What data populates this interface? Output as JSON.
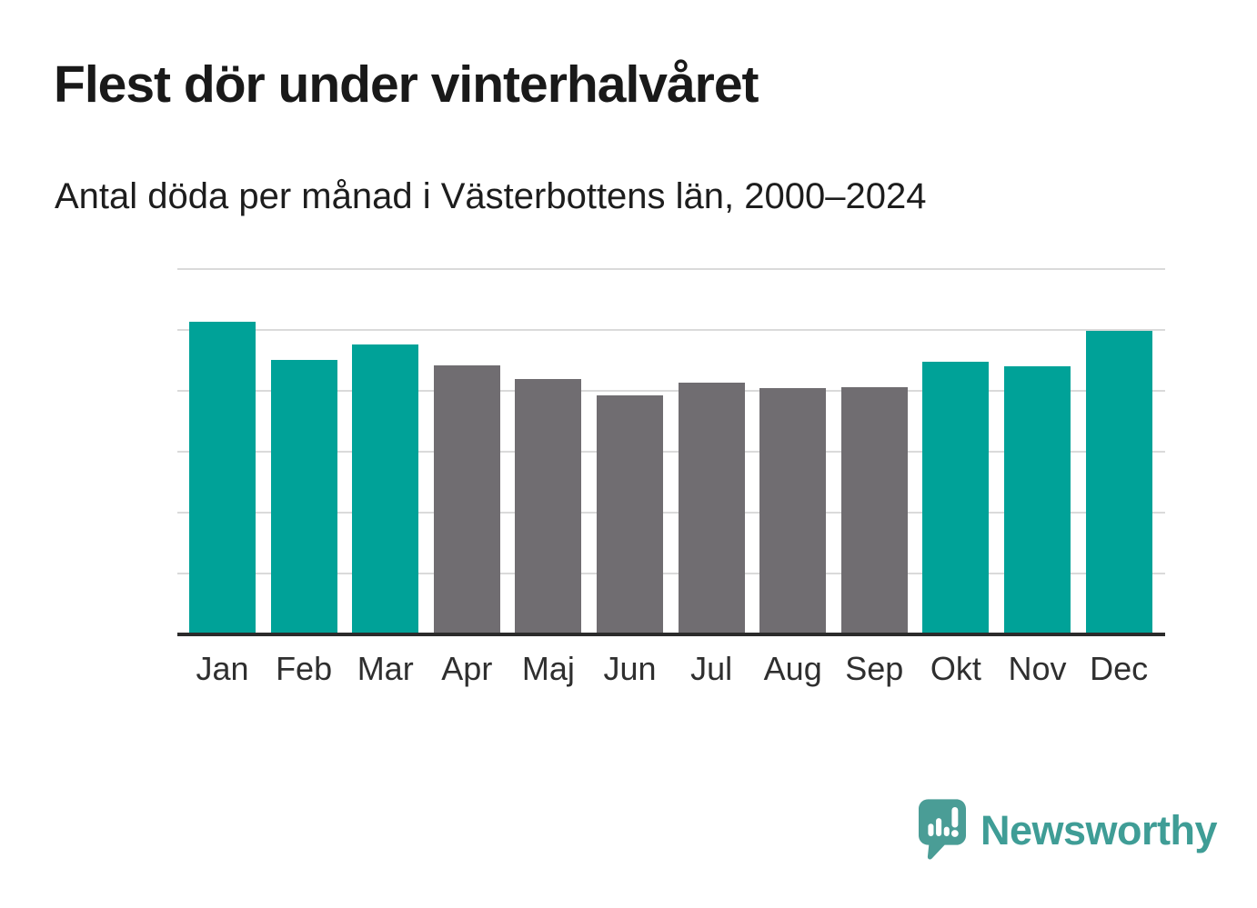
{
  "header": {
    "title": "Flest dör under vinterhalvåret",
    "subtitle": "Antal döda per månad i Västerbottens län, 2000–2024"
  },
  "footer": {
    "brand": "Newsworthy",
    "brand_color": "#3f9d96",
    "icon": "newsworthy-chart-bubble-icon",
    "icon_color": "#4a9d96"
  },
  "colors": {
    "background": "#ffffff",
    "title_text": "#191919",
    "subtitle_text": "#1d1d1d",
    "axis_label_text": "#2f2f2f",
    "gridline": "#dadada",
    "axis_line": "#2b2b2b"
  },
  "chart_data": {
    "type": "bar",
    "title": "Flest dör under vinterhalvåret",
    "subtitle": "Antal döda per månad i Västerbottens län, 2000–2024",
    "categories": [
      "Jan",
      "Feb",
      "Mar",
      "Apr",
      "Maj",
      "Jun",
      "Jul",
      "Aug",
      "Sep",
      "Okt",
      "Nov",
      "Dec"
    ],
    "values": [
      257,
      225,
      238,
      221,
      210,
      196,
      207,
      202,
      203,
      224,
      220,
      249
    ],
    "highlighted": [
      true,
      true,
      true,
      false,
      false,
      false,
      false,
      false,
      false,
      true,
      true,
      true
    ],
    "highlight_color": "#00a298",
    "muted_color": "#706d71",
    "ylim": [
      0,
      300
    ],
    "yticks": [
      0,
      50,
      100,
      150,
      200,
      250,
      300
    ],
    "xlabel": "",
    "ylabel": "",
    "grid": true,
    "legend": "none"
  }
}
